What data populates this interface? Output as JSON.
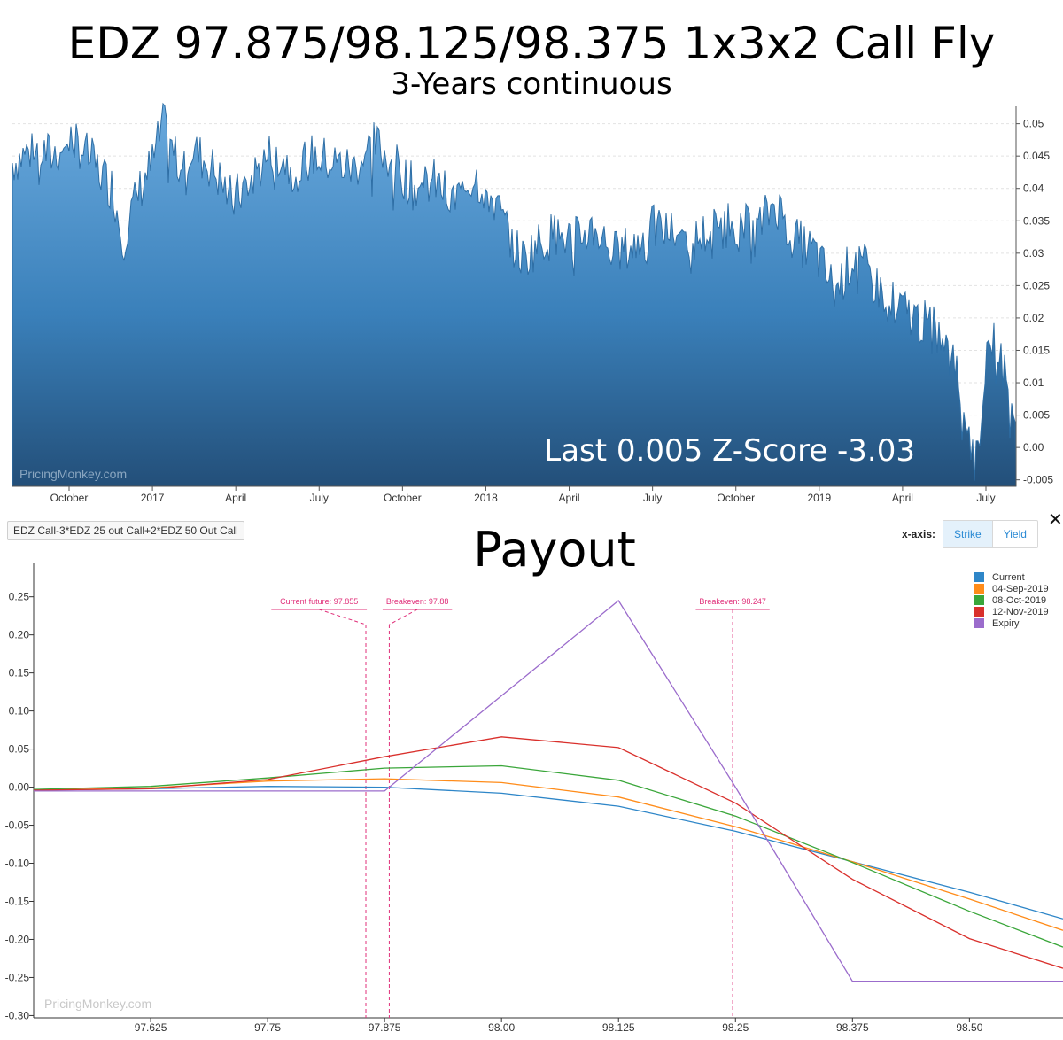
{
  "header": {
    "title": "EDZ 97.875/98.125/98.375 1x3x2 Call Fly",
    "subtitle": "3-Years continuous"
  },
  "watermark": "PricingMonkey.com",
  "top_annotation": "Last 0.005 Z-Score -3.03",
  "payout": {
    "title": "Payout",
    "strategy_label": "EDZ Call-3*EDZ 25 out Call+2*EDZ 50 Out Call",
    "xaxis_label": "x-axis:",
    "toggle": {
      "strike": "Strike",
      "yield": "Yield",
      "active": "Strike"
    },
    "close_icon": "✕"
  },
  "chart_data": [
    {
      "type": "area",
      "title": "EDZ 97.875/98.125/98.375 1x3x2 Call Fly",
      "subtitle": "3-Years continuous",
      "color": "#3b7fb6",
      "x_tick_labels": [
        "October",
        "2017",
        "April",
        "July",
        "October",
        "2018",
        "April",
        "July",
        "October",
        "2019",
        "April",
        "July"
      ],
      "ylim": [
        -0.006,
        0.052
      ],
      "y_ticks": [
        -0.005,
        0.0,
        0.005,
        0.01,
        0.015,
        0.02,
        0.025,
        0.03,
        0.035,
        0.04,
        0.045,
        0.05
      ],
      "y_tick_labels": [
        "-0.005",
        "0.00",
        "0.005",
        "0.01",
        "0.015",
        "0.02",
        "0.025",
        "0.03",
        "0.035",
        "0.04",
        "0.045",
        "0.05"
      ],
      "grid": true,
      "x_positions": [
        0.0,
        0.02,
        0.04,
        0.06,
        0.08,
        0.1,
        0.11,
        0.12,
        0.13,
        0.14,
        0.15,
        0.16,
        0.18,
        0.2,
        0.22,
        0.24,
        0.26,
        0.28,
        0.3,
        0.32,
        0.34,
        0.36,
        0.38,
        0.4,
        0.42,
        0.44,
        0.46,
        0.48,
        0.5,
        0.51,
        0.52,
        0.54,
        0.56,
        0.58,
        0.6,
        0.62,
        0.64,
        0.66,
        0.68,
        0.7,
        0.72,
        0.74,
        0.76,
        0.78,
        0.8,
        0.82,
        0.84,
        0.86,
        0.88,
        0.9,
        0.92,
        0.94,
        0.95,
        0.96,
        0.97,
        0.98,
        0.99,
        1.0
      ],
      "values": [
        0.044,
        0.046,
        0.045,
        0.048,
        0.044,
        0.04,
        0.032,
        0.037,
        0.041,
        0.044,
        0.05,
        0.045,
        0.046,
        0.043,
        0.038,
        0.042,
        0.046,
        0.043,
        0.045,
        0.044,
        0.043,
        0.047,
        0.044,
        0.04,
        0.041,
        0.038,
        0.042,
        0.038,
        0.031,
        0.029,
        0.031,
        0.033,
        0.032,
        0.034,
        0.03,
        0.031,
        0.034,
        0.033,
        0.032,
        0.034,
        0.035,
        0.033,
        0.038,
        0.032,
        0.03,
        0.024,
        0.03,
        0.025,
        0.022,
        0.02,
        0.018,
        0.012,
        0.005,
        -0.003,
        0.014,
        0.018,
        0.01,
        0.005
      ]
    },
    {
      "type": "line",
      "title": "Payout",
      "xlim": [
        97.5,
        98.6
      ],
      "x_ticks": [
        97.625,
        97.75,
        97.875,
        98.0,
        98.125,
        98.25,
        98.375,
        98.5
      ],
      "x_tick_labels": [
        "97.625",
        "97.75",
        "97.875",
        "98.00",
        "98.125",
        "98.25",
        "98.375",
        "98.50"
      ],
      "ylim": [
        -0.303,
        0.295
      ],
      "y_ticks": [
        -0.3,
        -0.25,
        -0.2,
        -0.15,
        -0.1,
        -0.05,
        0.0,
        0.05,
        0.1,
        0.15,
        0.2,
        0.25
      ],
      "y_tick_labels": [
        "-0.30",
        "-0.25",
        "-0.20",
        "-0.15",
        "-0.10",
        "-0.05",
        "0.00",
        "0.05",
        "0.10",
        "0.15",
        "0.20",
        "0.25"
      ],
      "x": [
        97.5,
        97.625,
        97.75,
        97.875,
        98.0,
        98.125,
        98.25,
        98.375,
        98.5,
        98.6
      ],
      "series": [
        {
          "name": "Current",
          "color": "#2e86c8",
          "values": [
            -0.004,
            -0.002,
            0.001,
            0.0,
            -0.008,
            -0.025,
            -0.058,
            -0.098,
            -0.138,
            -0.173
          ]
        },
        {
          "name": "04-Sep-2019",
          "color": "#ff8c1a",
          "values": [
            -0.004,
            -0.001,
            0.008,
            0.011,
            0.006,
            -0.013,
            -0.052,
            -0.098,
            -0.147,
            -0.188
          ]
        },
        {
          "name": "08-Oct-2019",
          "color": "#3aa63a",
          "values": [
            -0.003,
            0.001,
            0.012,
            0.025,
            0.028,
            0.009,
            -0.038,
            -0.099,
            -0.163,
            -0.21
          ]
        },
        {
          "name": "12-Nov-2019",
          "color": "#d9302c",
          "values": [
            -0.004,
            -0.002,
            0.01,
            0.04,
            0.066,
            0.052,
            -0.021,
            -0.121,
            -0.199,
            -0.238
          ]
        },
        {
          "name": "Expiry",
          "color": "#9b6ccc",
          "values": [
            -0.005,
            -0.005,
            -0.005,
            -0.005,
            0.12,
            0.245,
            0.0,
            -0.255,
            -0.255,
            -0.255
          ]
        }
      ],
      "markers": [
        {
          "label": "Current future: 97.855",
          "x": 97.855
        },
        {
          "label": "Breakeven: 97.88",
          "x": 97.88
        },
        {
          "label": "Breakeven: 98.247",
          "x": 98.247
        }
      ],
      "marker_color": "#e0307a",
      "legend": "top-right",
      "grid": false
    }
  ]
}
